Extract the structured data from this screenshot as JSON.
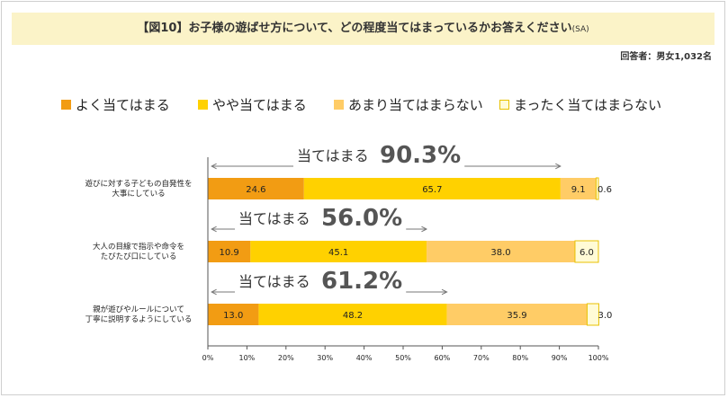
{
  "header": {
    "title": "【図10】お子様の遊ばせ方について、どの程度当てはまっているかお答えください",
    "title_suffix": "(SA)",
    "respondents": "回答者：男女1,032名"
  },
  "colors": [
    "#f29c13",
    "#ffd100",
    "#ffcc66",
    "#fffbd6"
  ],
  "chart_data": {
    "type": "bar",
    "orientation": "horizontal",
    "stacked": true,
    "legend_position": "top",
    "categories": [
      [
        "遊びに対する子どもの自発性を",
        "大事にしている"
      ],
      [
        "大人の目線で指示や命令を",
        "たびたび口にしている"
      ],
      [
        "親が遊びやルールについて",
        "丁寧に説明するようにしている"
      ]
    ],
    "series": [
      {
        "name": "よく当てはまる",
        "values": [
          24.6,
          10.9,
          13.0
        ],
        "labels": [
          "24.6",
          "10.9",
          "13.0"
        ]
      },
      {
        "name": "やや当てはまる",
        "values": [
          65.7,
          45.1,
          48.2
        ],
        "labels": [
          "65.7",
          "45.1",
          "48.2"
        ]
      },
      {
        "name": "あまり当てはまらない",
        "values": [
          9.1,
          38.0,
          35.9
        ],
        "labels": [
          "9.1",
          "38.0",
          "35.9"
        ]
      },
      {
        "name": "まったく当てはまらない",
        "values": [
          0.6,
          6.0,
          3.0
        ],
        "labels": [
          "0.6",
          "6.0",
          "3.0"
        ]
      }
    ],
    "annotations": [
      {
        "label": "当てはまる",
        "value": "90.3%",
        "to": 90.3
      },
      {
        "label": "当てはまる",
        "value": "56.0%",
        "to": 56.0
      },
      {
        "label": "当てはまる",
        "value": "61.2%",
        "to": 61.2
      }
    ],
    "xlim": [
      0,
      100
    ],
    "xticks": [
      "0%",
      "10%",
      "20%",
      "30%",
      "40%",
      "50%",
      "60%",
      "70%",
      "80%",
      "90%",
      "100%"
    ],
    "grid": false
  }
}
